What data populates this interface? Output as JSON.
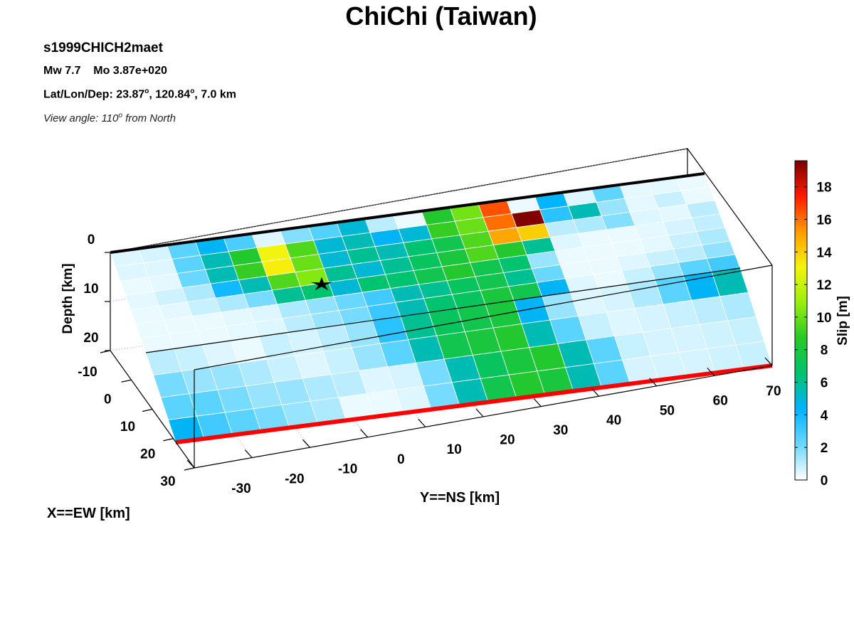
{
  "figure": {
    "title": "ChiChi (Taiwan)",
    "model_id": "s1999CHICH2maet",
    "magnitude_line": "Mw 7.7    Mo 3.87e+020",
    "location_prefix": "Lat/Lon/Dep: 23.87",
    "location_lon": ", 120.84",
    "location_dep": ", 7.0 km",
    "degree_mark": "o",
    "view_prefix": "View angle: 110",
    "view_suffix": " from North"
  },
  "colors": {
    "trace_color": "#ff0000",
    "box_color": "#000000",
    "grid_color": "#9a9a9a",
    "cell_edge_color": "#ffffff",
    "hypocenter_color": "#000000",
    "colormap_stops": [
      "#ffffff",
      "#6ad8ff",
      "#00b3ff",
      "#00c36e",
      "#26c826",
      "#98ef0d",
      "#f4f40c",
      "#ff9c00",
      "#ff1a00",
      "#7a0000"
    ]
  },
  "chart_data": {
    "type": "heatmap",
    "title": "ChiChi (Taiwan)",
    "xlabel": "X==EW [km]",
    "ylabel": "Y==NS [km]",
    "zlabel": "Depth [km]",
    "colorbar_label": "Slip [m]",
    "x_ticks": [
      -10,
      0,
      10,
      20,
      30
    ],
    "y_ticks": [
      -30,
      -20,
      -10,
      0,
      10,
      20,
      30,
      40,
      50,
      60,
      70
    ],
    "z_ticks": [
      0,
      10,
      20
    ],
    "colorbar_ticks": [
      0,
      2,
      4,
      6,
      8,
      10,
      12,
      14,
      16,
      18
    ],
    "colorbar_range": [
      0,
      19.6
    ],
    "fault_segments": [
      {
        "name": "shallow",
        "slip": [
          [
            0.5,
            0.6,
            2.5,
            4.5,
            2.8,
            0.5,
            1.8,
            2.6,
            5.0,
            1.0,
            0.3,
            8.5,
            10.2,
            16.5,
            0.3,
            4.3,
            0.5,
            2.4,
            0.4,
            0.4,
            0.3
          ],
          [
            0.5,
            0.5,
            2.5,
            5.5,
            8.5,
            13.0,
            9.5,
            5.0,
            5.5,
            4.5,
            5.0,
            9.0,
            10.0,
            16.0,
            19.5,
            3.5,
            5.5,
            1.5,
            0.4,
            0.8,
            0.3
          ],
          [
            0.3,
            0.4,
            2.2,
            5.5,
            9.0,
            13.2,
            10.0,
            5.0,
            6.0,
            5.5,
            6.5,
            7.5,
            9.5,
            15.0,
            14.0,
            1.0,
            1.2,
            1.8,
            0.5,
            0.4,
            1.0
          ],
          [
            0.4,
            0.7,
            1.2,
            4.0,
            5.5,
            9.5,
            10.5,
            6.0,
            5.0,
            6.0,
            7.0,
            8.0,
            9.5,
            8.5,
            6.0,
            0.5,
            0.3,
            0.3,
            0.4,
            0.6,
            0.9
          ],
          [
            0.3,
            0.4,
            0.8,
            1.2,
            2.0,
            6.0,
            6.5,
            5.0,
            6.5,
            6.5,
            7.5,
            8.5,
            7.5,
            6.5,
            1.5,
            0.3,
            0.3,
            0.3,
            0.4,
            0.8,
            1.2
          ],
          [
            0.3,
            0.3,
            0.3,
            0.4,
            0.5,
            1.2,
            1.6,
            2.2,
            3.0,
            5.5,
            6.0,
            7.0,
            7.5,
            6.0,
            2.2,
            0.3,
            0.3,
            0.5,
            0.8,
            1.0,
            1.6
          ],
          [
            0.3,
            0.3,
            0.3,
            0.4,
            0.5,
            1.0,
            1.5,
            2.0,
            3.2,
            5.5,
            6.5,
            7.0,
            8.0,
            7.5,
            4.5,
            0.5,
            0.3,
            0.8,
            1.5,
            2.5,
            3.0
          ]
        ]
      },
      {
        "name": "deep",
        "slip": [
          [
            1.0,
            0.8,
            0.5,
            0.3,
            0.8,
            0.6,
            1.0,
            1.5,
            3.5,
            6.0,
            7.0,
            7.5,
            8.0,
            4.5,
            1.5,
            0.5,
            0.6,
            1.2,
            2.5,
            4.5,
            5.5
          ],
          [
            2.0,
            1.5,
            1.5,
            1.2,
            0.8,
            0.5,
            0.8,
            1.5,
            2.5,
            5.5,
            7.5,
            8.0,
            8.5,
            5.5,
            2.5,
            0.8,
            0.5,
            0.6,
            0.8,
            1.0,
            1.2
          ],
          [
            2.5,
            2.5,
            2.0,
            1.5,
            1.5,
            1.2,
            1.0,
            0.5,
            0.6,
            2.0,
            5.5,
            7.0,
            8.0,
            8.5,
            5.5,
            2.5,
            0.8,
            0.6,
            0.6,
            0.7,
            0.8
          ],
          [
            4.5,
            3.0,
            2.5,
            2.0,
            1.5,
            1.2,
            0.3,
            0.3,
            0.5,
            2.0,
            5.5,
            7.5,
            8.5,
            8.0,
            5.5,
            2.5,
            0.6,
            0.6,
            0.6,
            0.7,
            0.8
          ]
        ]
      }
    ],
    "hypocenter": {
      "marker": "star",
      "x": 0,
      "y": 0,
      "depth_km": 7.0
    }
  }
}
